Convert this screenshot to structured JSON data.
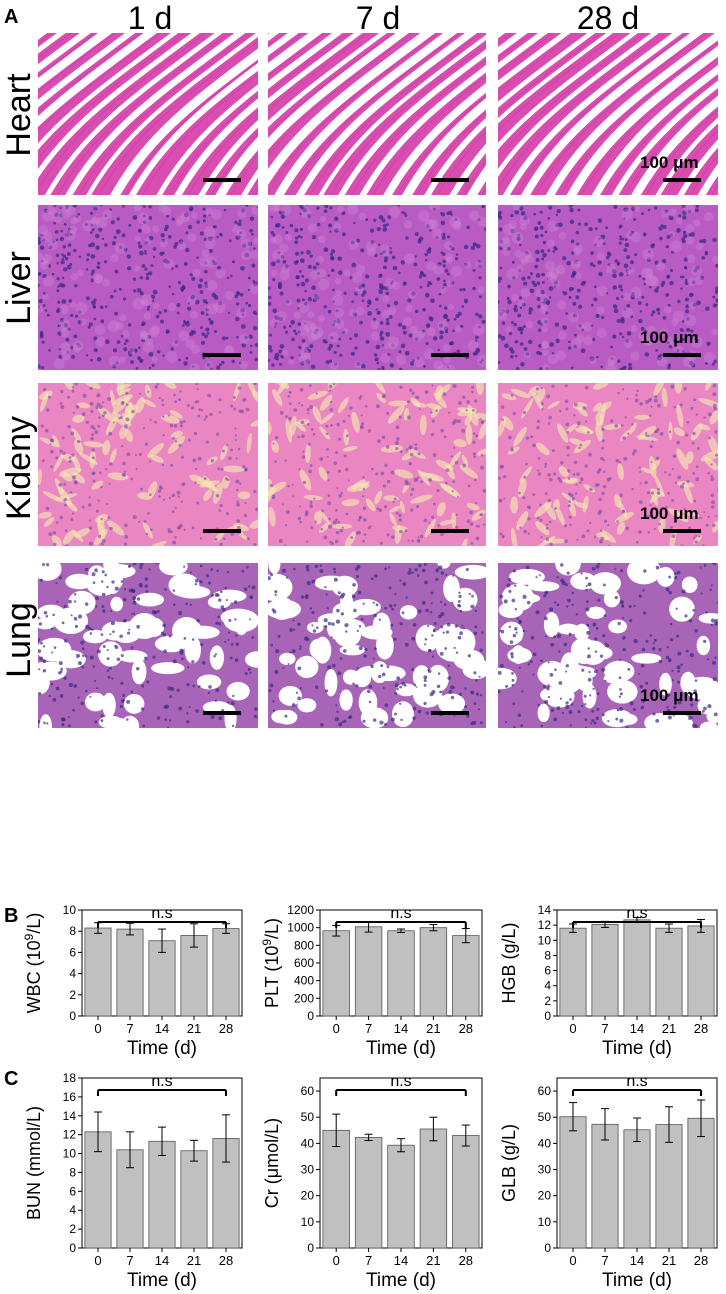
{
  "panels": {
    "a": "A",
    "b": "B",
    "c": "C"
  },
  "columns": [
    "1 d",
    "7 d",
    "28 d"
  ],
  "rows": [
    {
      "label": "Heart",
      "kind": "heart"
    },
    {
      "label": "Liver",
      "kind": "liver"
    },
    {
      "label": "Kideny",
      "kind": "kidney"
    },
    {
      "label": "Lung",
      "kind": "lung"
    }
  ],
  "scale_label": "100 μm",
  "colors": {
    "heart": "#e15fb8",
    "liver": "#b45bc8",
    "kidney": "#e98ac2",
    "lung": "#ffffff",
    "bar": "#c0c0c0"
  },
  "chart_data": [
    {
      "type": "bar",
      "categories": [
        "0",
        "7",
        "14",
        "21",
        "28"
      ],
      "values": [
        8.3,
        8.2,
        7.1,
        7.6,
        8.25
      ],
      "errors": [
        0.5,
        0.55,
        1.1,
        1.1,
        0.45
      ],
      "ylabel_main": "WBC (10",
      "ylabel_sup": "9",
      "ylabel_tail": "/L)",
      "xlabel": "Time (d)",
      "ylim": [
        0,
        10
      ],
      "yticks": [
        0,
        2,
        4,
        6,
        8,
        10
      ],
      "annotation": "n.s"
    },
    {
      "type": "bar",
      "categories": [
        "0",
        "7",
        "14",
        "21",
        "28"
      ],
      "values": [
        965,
        1010,
        965,
        1000,
        910
      ],
      "errors": [
        60,
        60,
        20,
        35,
        80
      ],
      "ylabel_main": "PLT (10",
      "ylabel_sup": "9",
      "ylabel_tail": "/L)",
      "xlabel": "Time (d)",
      "ylim": [
        0,
        1200
      ],
      "yticks": [
        0,
        200,
        400,
        600,
        800,
        1000,
        1200
      ],
      "annotation": "n.s"
    },
    {
      "type": "bar",
      "categories": [
        "0",
        "7",
        "14",
        "21",
        "28"
      ],
      "values": [
        11.6,
        12.1,
        12.7,
        11.6,
        11.9
      ],
      "errors": [
        0.55,
        0.4,
        0.3,
        0.55,
        0.85
      ],
      "ylabel_main": "HGB (g/L)",
      "ylabel_sup": "",
      "ylabel_tail": "",
      "xlabel": "Time (d)",
      "ylim": [
        0,
        14
      ],
      "yticks": [
        0,
        2,
        4,
        6,
        8,
        10,
        12,
        14
      ],
      "annotation": "n.s"
    },
    {
      "type": "bar",
      "categories": [
        "0",
        "7",
        "14",
        "21",
        "28"
      ],
      "values": [
        12.3,
        10.4,
        11.3,
        10.3,
        11.6
      ],
      "errors": [
        2.1,
        1.9,
        1.5,
        1.1,
        2.5
      ],
      "ylabel_main": "BUN (mmol/L)",
      "ylabel_sup": "",
      "ylabel_tail": "",
      "xlabel": "Time (d)",
      "ylim": [
        0,
        18
      ],
      "yticks": [
        0,
        2,
        4,
        6,
        8,
        10,
        12,
        14,
        16,
        18
      ],
      "annotation": "n.s"
    },
    {
      "type": "bar",
      "categories": [
        "0",
        "7",
        "14",
        "21",
        "28"
      ],
      "values": [
        45,
        42.3,
        39.3,
        45.5,
        43
      ],
      "errors": [
        6.2,
        1.2,
        2.5,
        4.5,
        4.0
      ],
      "ylabel_main": "Cr (μmol/L)",
      "ylabel_sup": "",
      "ylabel_tail": "",
      "xlabel": "Time (d)",
      "ylim": [
        0,
        65
      ],
      "yticks": [
        0,
        10,
        20,
        30,
        40,
        50,
        60
      ],
      "annotation": "n.s"
    },
    {
      "type": "bar",
      "categories": [
        "0",
        "7",
        "14",
        "21",
        "28"
      ],
      "values": [
        50.2,
        47.3,
        45.2,
        47.2,
        49.6
      ],
      "errors": [
        5.4,
        6.0,
        4.5,
        6.8,
        7.0
      ],
      "ylabel_main": "GLB (g/L)",
      "ylabel_sup": "",
      "ylabel_tail": "",
      "xlabel": "Time (d)",
      "ylim": [
        0,
        65
      ],
      "yticks": [
        0,
        10,
        20,
        30,
        40,
        50,
        60
      ],
      "annotation": "n.s"
    }
  ]
}
